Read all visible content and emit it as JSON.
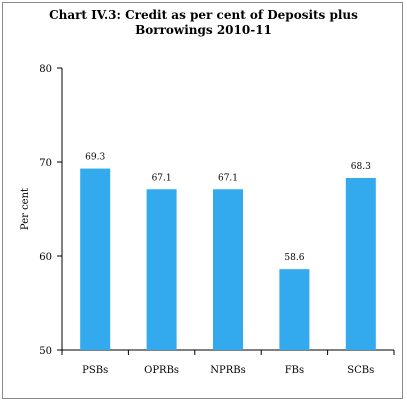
{
  "chart_data": {
    "type": "bar",
    "title_lines": [
      "Chart IV.3: Credit as per cent of Deposits plus",
      "Borrowings 2010-11"
    ],
    "ylabel": "Per cent",
    "xlabel": "",
    "categories": [
      "PSBs",
      "OPRBs",
      "NPRBs",
      "FBs",
      "SCBs"
    ],
    "values": [
      69.3,
      67.1,
      67.1,
      58.6,
      68.3
    ],
    "data_labels": [
      "69.3",
      "67.1",
      "67.1",
      "58.6",
      "68.3"
    ],
    "ylim": [
      50,
      80
    ],
    "yticks": [
      50,
      60,
      70,
      80
    ],
    "ytick_labels": [
      "50",
      "60",
      "70",
      "80"
    ],
    "grid": false,
    "legend": "none",
    "bar_color": "#33aaee"
  }
}
